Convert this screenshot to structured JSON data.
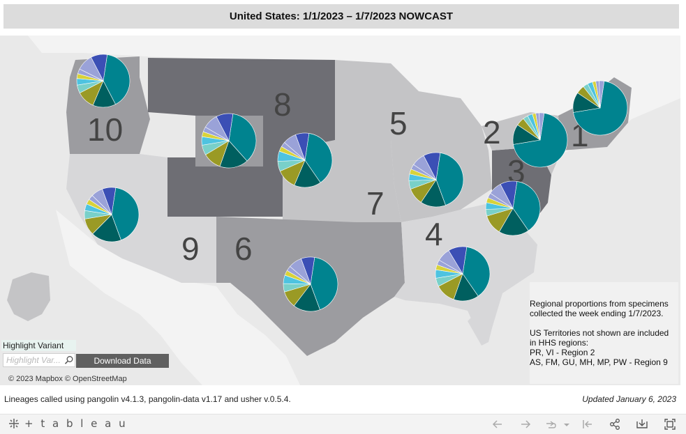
{
  "title": "United States: 1/1/2023 – 1/7/2023 NOWCAST",
  "regions": [
    {
      "label": "10"
    },
    {
      "label": "8"
    },
    {
      "label": "5"
    },
    {
      "label": "2"
    },
    {
      "label": "1"
    },
    {
      "label": "3"
    },
    {
      "label": "7"
    },
    {
      "label": "4"
    },
    {
      "label": "9"
    },
    {
      "label": "6"
    }
  ],
  "colors": {
    "blue": "#3b4fb5",
    "teal": "#00838f",
    "dark_teal": "#005f5f",
    "olive": "#9a9a25",
    "light_teal": "#79d0c9",
    "sky": "#4ec3e0",
    "lavender": "#9aa2d8",
    "yellow": "#d8d23a",
    "region_dark": "#6e6e74",
    "region_mid": "#9c9ca0",
    "region_light": "#c4c4c6",
    "region_pale": "#d7d7d9"
  },
  "pies": [
    {
      "region": "10",
      "slices": [
        0.4,
        0.14,
        0.11,
        0.05,
        0.04,
        0.03,
        0.03,
        0.1,
        0.1
      ]
    },
    {
      "region": "8",
      "slices": [
        0.36,
        0.17,
        0.11,
        0.06,
        0.05,
        0.03,
        0.03,
        0.09,
        0.1
      ]
    },
    {
      "region": "7",
      "slices": [
        0.38,
        0.16,
        0.12,
        0.06,
        0.06,
        0.03,
        0.03,
        0.08,
        0.08
      ]
    },
    {
      "region": "5",
      "slices": [
        0.42,
        0.15,
        0.1,
        0.05,
        0.04,
        0.03,
        0.03,
        0.08,
        0.1
      ]
    },
    {
      "region": "1",
      "slices": [
        0.7,
        0.12,
        0.05,
        0.03,
        0.03,
        0.02,
        0.02,
        0.03,
        0.0
      ]
    },
    {
      "region": "2",
      "slices": [
        0.7,
        0.12,
        0.05,
        0.03,
        0.03,
        0.02,
        0.02,
        0.03,
        0.0
      ]
    },
    {
      "region": "3",
      "slices": [
        0.38,
        0.18,
        0.12,
        0.04,
        0.04,
        0.03,
        0.03,
        0.08,
        0.1
      ]
    },
    {
      "region": "9",
      "slices": [
        0.42,
        0.18,
        0.1,
        0.05,
        0.04,
        0.03,
        0.03,
        0.07,
        0.08
      ]
    },
    {
      "region": "6",
      "slices": [
        0.42,
        0.16,
        0.1,
        0.05,
        0.05,
        0.03,
        0.03,
        0.08,
        0.08
      ]
    },
    {
      "region": "4",
      "slices": [
        0.38,
        0.15,
        0.12,
        0.05,
        0.05,
        0.03,
        0.03,
        0.08,
        0.11
      ]
    }
  ],
  "notes": {
    "proportions": "Regional proportions from specimens\ncollected the week ending 1/7/2023.",
    "territories": "US Territories not shown are included\nin HHS regions:\nPR, VI - Region 2\nAS, FM, GU, MH, MP, PW - Region 9"
  },
  "highlight": {
    "label": "Highlight Variant",
    "placeholder": "Highlight Var..."
  },
  "download_label": "Download Data",
  "attribution": "© 2023 Mapbox  © OpenStreetMap",
  "footnote": "Lineages called using pangolin v4.1.3, pangolin-data v1.17 and usher v.0.5.4.",
  "updated": "Updated January 6, 2023",
  "toolbar": {
    "logo": "+ t a b l e a u",
    "icons": [
      "undo-icon",
      "redo-icon",
      "revert-icon",
      "revert-dropdown-icon",
      "reset-icon",
      "share-icon",
      "download-icon",
      "fullscreen-icon"
    ]
  }
}
